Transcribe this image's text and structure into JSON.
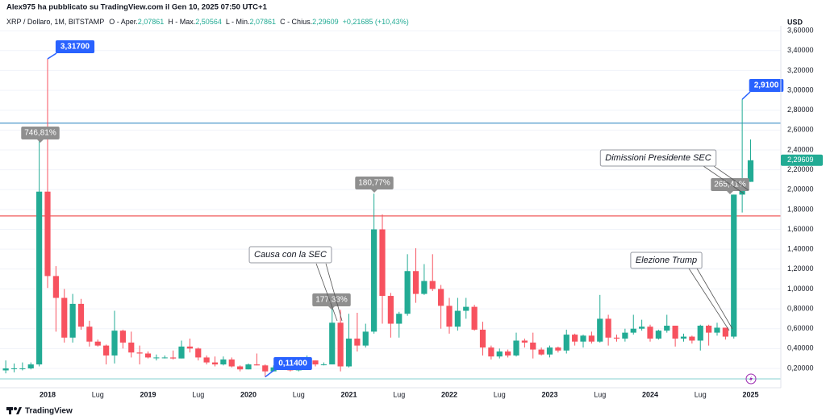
{
  "header": {
    "publisher": "Alex975 ha pubblicato su TradingView.com il Gen 10, 2025 07:50 UTC+1"
  },
  "chart_data": {
    "type": "candlestick",
    "title": "XRP / Dollaro, 1M, BITSTAMP",
    "legend": [
      {
        "label": "O - Aper.",
        "value": "2,07861"
      },
      {
        "label": "H - Max.",
        "value": "2,50564"
      },
      {
        "label": "L - Min.",
        "value": "2,07861"
      },
      {
        "label": "C - Chius.",
        "value": "2,29609"
      }
    ],
    "change": "+0,21685 (+10,43%)",
    "categories": [
      null,
      null,
      null,
      null,
      null,
      "2018",
      null,
      null,
      null,
      null,
      null,
      "Lug",
      null,
      null,
      null,
      null,
      null,
      "2019",
      null,
      null,
      null,
      null,
      null,
      "Lug",
      null,
      null,
      null,
      null,
      null,
      "2020",
      null,
      null,
      null,
      null,
      null,
      "Lug",
      null,
      null,
      null,
      null,
      null,
      "2021",
      null,
      null,
      null,
      null,
      null,
      "Lug",
      null,
      null,
      null,
      null,
      null,
      "2022",
      null,
      null,
      null,
      null,
      null,
      "Lug",
      null,
      null,
      null,
      null,
      null,
      "2023",
      null,
      null,
      null,
      null,
      null,
      "Lug",
      null,
      null,
      null,
      null,
      null,
      "2024",
      null,
      null,
      null,
      null,
      null,
      "Lug",
      null,
      null,
      null,
      null,
      null,
      "2025"
    ],
    "open": [
      0.18,
      0.2,
      0.2,
      0.2,
      0.24,
      1.98,
      1.13,
      0.91,
      0.51,
      0.85,
      0.62,
      0.47,
      0.43,
      0.33,
      0.58,
      0.46,
      0.36,
      0.35,
      0.31,
      0.31,
      0.31,
      0.3,
      0.42,
      0.4,
      0.31,
      0.26,
      0.24,
      0.29,
      0.22,
      0.19,
      0.24,
      0.23,
      0.17,
      0.21,
      0.2,
      0.18,
      0.25,
      0.28,
      0.24,
      0.24,
      0.66,
      0.22,
      0.5,
      0.43,
      0.57,
      1.6,
      0.93,
      0.65,
      0.75,
      1.18,
      0.95,
      1.08,
      1.0,
      0.83,
      0.62,
      0.78,
      0.82,
      0.59,
      0.41,
      0.32,
      0.37,
      0.33,
      0.48,
      0.46,
      0.39,
      0.34,
      0.41,
      0.38,
      0.54,
      0.47,
      0.53,
      0.47,
      0.7,
      0.51,
      0.5,
      0.56,
      0.6,
      0.62,
      0.5,
      0.58,
      0.63,
      0.5,
      0.52,
      0.48,
      0.63,
      0.56,
      0.61,
      0.52,
      1.95,
      2.07861
    ],
    "high": [
      0.28,
      0.25,
      0.26,
      0.26,
      2.5,
      3.317,
      1.23,
      1.0,
      0.95,
      0.9,
      0.68,
      0.49,
      0.44,
      0.78,
      0.59,
      0.57,
      0.43,
      0.37,
      0.34,
      0.33,
      0.38,
      0.48,
      0.5,
      0.41,
      0.33,
      0.32,
      0.32,
      0.31,
      0.23,
      0.25,
      0.35,
      0.24,
      0.23,
      0.22,
      0.21,
      0.26,
      0.33,
      0.28,
      0.26,
      0.91,
      0.79,
      0.75,
      0.76,
      0.65,
      1.96,
      1.75,
      0.96,
      0.77,
      1.35,
      1.41,
      1.25,
      1.35,
      1.04,
      0.91,
      0.91,
      0.91,
      0.84,
      0.67,
      0.43,
      0.4,
      0.39,
      0.56,
      0.5,
      0.56,
      0.41,
      0.43,
      0.42,
      0.59,
      0.55,
      0.54,
      0.57,
      0.94,
      0.74,
      0.54,
      0.6,
      0.74,
      0.69,
      0.64,
      0.59,
      0.74,
      0.63,
      0.55,
      0.53,
      0.64,
      0.64,
      0.66,
      0.61,
      1.95,
      2.91,
      2.50564
    ],
    "low": [
      0.15,
      0.16,
      0.18,
      0.19,
      0.22,
      1.01,
      0.57,
      0.46,
      0.46,
      0.59,
      0.42,
      0.42,
      0.24,
      0.25,
      0.4,
      0.31,
      0.24,
      0.3,
      0.28,
      0.3,
      0.29,
      0.3,
      0.36,
      0.28,
      0.24,
      0.22,
      0.23,
      0.21,
      0.17,
      0.19,
      0.23,
      0.114,
      0.17,
      0.19,
      0.17,
      0.17,
      0.25,
      0.22,
      0.23,
      0.24,
      0.17,
      0.21,
      0.37,
      0.41,
      0.55,
      0.65,
      0.51,
      0.51,
      0.73,
      0.86,
      0.94,
      0.98,
      0.6,
      0.55,
      0.58,
      0.7,
      0.58,
      0.33,
      0.29,
      0.3,
      0.31,
      0.32,
      0.41,
      0.3,
      0.33,
      0.31,
      0.36,
      0.35,
      0.43,
      0.41,
      0.45,
      0.46,
      0.43,
      0.47,
      0.47,
      0.54,
      0.58,
      0.47,
      0.49,
      0.56,
      0.42,
      0.47,
      0.45,
      0.38,
      0.43,
      0.53,
      0.49,
      0.5,
      1.77,
      2.07861
    ],
    "close": [
      0.2,
      0.2,
      0.2,
      0.24,
      1.98,
      1.13,
      0.91,
      0.51,
      0.85,
      0.62,
      0.47,
      0.43,
      0.33,
      0.58,
      0.46,
      0.36,
      0.35,
      0.31,
      0.31,
      0.31,
      0.3,
      0.42,
      0.4,
      0.31,
      0.26,
      0.24,
      0.29,
      0.22,
      0.19,
      0.24,
      0.23,
      0.17,
      0.21,
      0.2,
      0.18,
      0.25,
      0.28,
      0.24,
      0.24,
      0.66,
      0.22,
      0.5,
      0.43,
      0.57,
      1.6,
      0.93,
      0.65,
      0.75,
      1.18,
      0.95,
      1.08,
      1.0,
      0.83,
      0.62,
      0.78,
      0.82,
      0.59,
      0.41,
      0.32,
      0.37,
      0.33,
      0.48,
      0.46,
      0.39,
      0.34,
      0.41,
      0.38,
      0.54,
      0.47,
      0.53,
      0.47,
      0.7,
      0.51,
      0.5,
      0.56,
      0.6,
      0.62,
      0.5,
      0.58,
      0.63,
      0.5,
      0.52,
      0.48,
      0.63,
      0.56,
      0.61,
      0.52,
      1.95,
      2.07861,
      2.29609
    ],
    "colors": {
      "up": "#22ab94",
      "down": "#f7525f"
    },
    "ylim": [
      0.005,
      3.65
    ],
    "yticks": [
      {
        "value": 0.2,
        "label": "0,20000"
      },
      {
        "value": 0.4,
        "label": "0,40000"
      },
      {
        "value": 0.6,
        "label": "0,60000"
      },
      {
        "value": 0.8,
        "label": "0,80000"
      },
      {
        "value": 1.0,
        "label": "1,00000"
      },
      {
        "value": 1.2,
        "label": "1,20000"
      },
      {
        "value": 1.4,
        "label": "1,40000"
      },
      {
        "value": 1.6,
        "label": "1,60000"
      },
      {
        "value": 1.8,
        "label": "1,80000"
      },
      {
        "value": 2.0,
        "label": "2,00000"
      },
      {
        "value": 2.2,
        "label": "2,20000"
      },
      {
        "value": 2.4,
        "label": "2,40000"
      },
      {
        "value": 2.6,
        "label": "2,60000"
      },
      {
        "value": 2.8,
        "label": "2,80000"
      },
      {
        "value": 3.0,
        "label": "3,00000"
      },
      {
        "value": 3.2,
        "label": "3,20000"
      },
      {
        "value": 3.4,
        "label": "3,40000"
      },
      {
        "value": 3.6,
        "label": "3,60000"
      }
    ],
    "grid": true,
    "y_axis_label": "USD",
    "last_price": {
      "value": 2.29609,
      "label": "2,29609"
    },
    "hlines": [
      {
        "value": 2.67,
        "color": "#4f9acb"
      },
      {
        "value": 1.735,
        "color": "#f05a5a"
      },
      {
        "value": 0.094,
        "color": "#9fdada"
      }
    ],
    "price_labels": [
      "3,31700",
      "0,11400",
      "2,9100"
    ],
    "percent_labels": [
      "746,81%",
      "180,77%",
      "177,33%",
      "265,41%"
    ],
    "notes": [
      "Causa con la SEC",
      "Elezione Trump",
      "Dimissioni Presidente SEC"
    ]
  },
  "footer": {
    "brand": "TradingView"
  }
}
